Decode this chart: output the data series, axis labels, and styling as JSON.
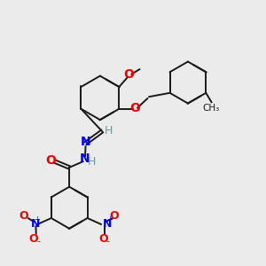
{
  "bg_color": "#ebebeb",
  "bond_color": "#1a1a1a",
  "N_color": "#0000ee",
  "O_color": "#ee0000",
  "H_color": "#6a9a9a",
  "figsize": [
    3.0,
    3.0
  ],
  "dpi": 100,
  "xlim": [
    0,
    12
  ],
  "ylim": [
    0,
    12
  ]
}
